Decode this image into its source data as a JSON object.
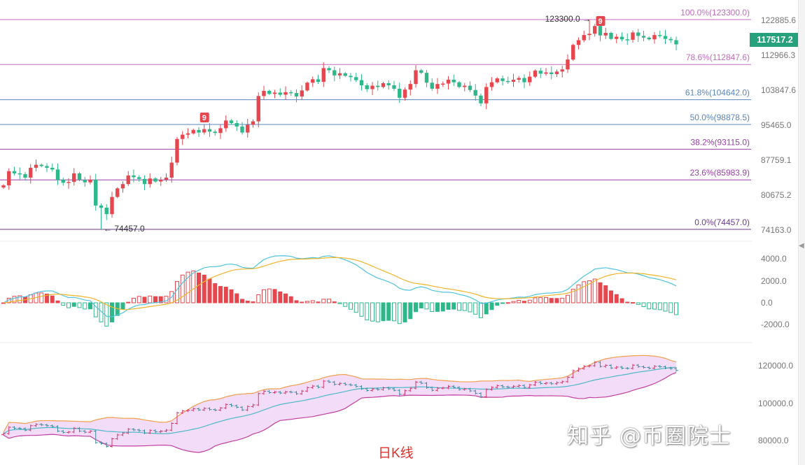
{
  "chart_data": [
    {
      "type": "candlestick",
      "title": "",
      "up_color": "#e5474f",
      "down_color": "#2eb88a",
      "closes": [
        84700,
        88000,
        87500,
        87300,
        86500,
        88800,
        89500,
        89200,
        88800,
        88400,
        86000,
        85300,
        85500,
        87500,
        86000,
        85400,
        86000,
        80000,
        79500,
        78000,
        82000,
        84000,
        85000,
        87000,
        86600,
        86200,
        85000,
        86300,
        85600,
        86000,
        86500,
        90000,
        95500,
        96500,
        96800,
        97600,
        97000,
        97800,
        97200,
        96900,
        98000,
        99800,
        99200,
        98400,
        97000,
        98800,
        99600,
        105500,
        106700,
        106000,
        106300,
        105800,
        106400,
        106200,
        105400,
        106800,
        108600,
        109400,
        108800,
        112000,
        111500,
        110300,
        110800,
        110200,
        109900,
        109200,
        108000,
        107100,
        107900,
        107600,
        108500,
        108000,
        107200,
        105100,
        107000,
        108300,
        111500,
        110900,
        108600,
        107200,
        108300,
        108400,
        109300,
        108700,
        107600,
        107900,
        106900,
        105600,
        103800,
        107600,
        108700,
        109600,
        109000,
        108800,
        109300,
        109700,
        108700,
        110000,
        111400,
        110700,
        111000,
        110600,
        111200,
        111700,
        114000,
        117400,
        118500,
        119700,
        120000,
        121800,
        119600,
        120200,
        118800,
        119300,
        118700,
        118600,
        120300,
        119500,
        119100,
        118700,
        119700,
        119500,
        118800,
        118500,
        117517.2
      ],
      "low_label": "74457.0",
      "low_value": 74457,
      "high_label": "123300.0",
      "high_value": 123300,
      "last_price": "117517.2",
      "y_ticks": [
        "122885.6",
        "112966.3",
        "103847.6",
        "95465.0",
        "87759.1",
        "80675.2",
        "74163.0"
      ],
      "fibonacci": [
        {
          "label": "100.0%(123300.0)",
          "value": 123300,
          "color": "#c46bbf"
        },
        {
          "label": "78.6%(112847.6)",
          "value": 112847.6,
          "color": "#c46bbf"
        },
        {
          "label": "61.8%(104642.0)",
          "value": 104642,
          "color": "#5b84b8"
        },
        {
          "label": "50.0%(98878.5)",
          "value": 98878.5,
          "color": "#5b84b8"
        },
        {
          "label": "38.2%(93115.0)",
          "value": 93115,
          "color": "#9a3fa8"
        },
        {
          "label": "23.6%(85983.9)",
          "value": 85983.9,
          "color": "#9a3fa8"
        },
        {
          "label": "0.0%(74457.0)",
          "value": 74457,
          "color": "#6a3a90"
        }
      ],
      "td_markers": [
        {
          "label": "9",
          "index": 37
        },
        {
          "label": "9",
          "index": 110
        }
      ],
      "marker_color": "#e5474f"
    },
    {
      "type": "macd",
      "y_ticks": [
        "4000.0",
        "2000.0",
        "0.0",
        "-2000.0"
      ],
      "dif_color": "#4fc3dd",
      "dea_color": "#f0b429"
    },
    {
      "type": "bollinger",
      "y_ticks": [
        "120000.0",
        "100000.0",
        "80000.0"
      ],
      "upper_color": "#f0a050",
      "mid_color": "#4fb8c8",
      "lower_color": "#c040a0",
      "fill_color": "#f3dcf7"
    }
  ],
  "footer": {
    "period_label": "日K线"
  },
  "watermark": "知乎 @币圈院士"
}
